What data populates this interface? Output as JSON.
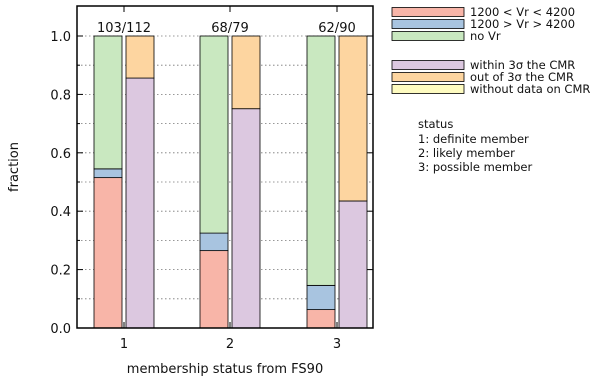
{
  "chart_data": {
    "type": "bar",
    "stacked": true,
    "xlabel": "membership status from FS90",
    "ylabel": "fraction",
    "ylim": [
      0,
      1.05
    ],
    "yticks": [
      "0.0",
      "0.2",
      "0.4",
      "0.6",
      "0.8",
      "1.0"
    ],
    "ytick_values": [
      0,
      0.2,
      0.4,
      0.6,
      0.8,
      1.0
    ],
    "grid": "horizontal dotted",
    "categories": [
      "1",
      "2",
      "3"
    ],
    "count_labels": [
      "103/112",
      "68/79",
      "62/90"
    ],
    "groups": [
      {
        "name": "Vr",
        "series": [
          {
            "label": "1200 < Vr < 4200",
            "color": "#f8b5a8",
            "values": [
              0.515,
              0.265,
              0.063
            ]
          },
          {
            "label": "1200 > Vr > 4200",
            "color": "#a8c4e0",
            "values": [
              0.03,
              0.06,
              0.083
            ]
          },
          {
            "label": "no Vr",
            "color": "#c9e8c0",
            "values": [
              0.455,
              0.675,
              0.854
            ]
          }
        ]
      },
      {
        "name": "CMR",
        "series": [
          {
            "label": "within 3σ the CMR",
            "color": "#dcc8e0",
            "values": [
              0.856,
              0.751,
              0.435
            ]
          },
          {
            "label": "out of 3σ the CMR",
            "color": "#fdd5a0",
            "values": [
              0.144,
              0.249,
              0.565
            ]
          },
          {
            "label": "without data on CMR",
            "color": "#fefbc0",
            "values": [
              0,
              0,
              0
            ]
          }
        ]
      }
    ],
    "status_legend": {
      "title": "status",
      "items": [
        "1: definite member",
        "2: likely member",
        "3: possible member"
      ]
    }
  }
}
